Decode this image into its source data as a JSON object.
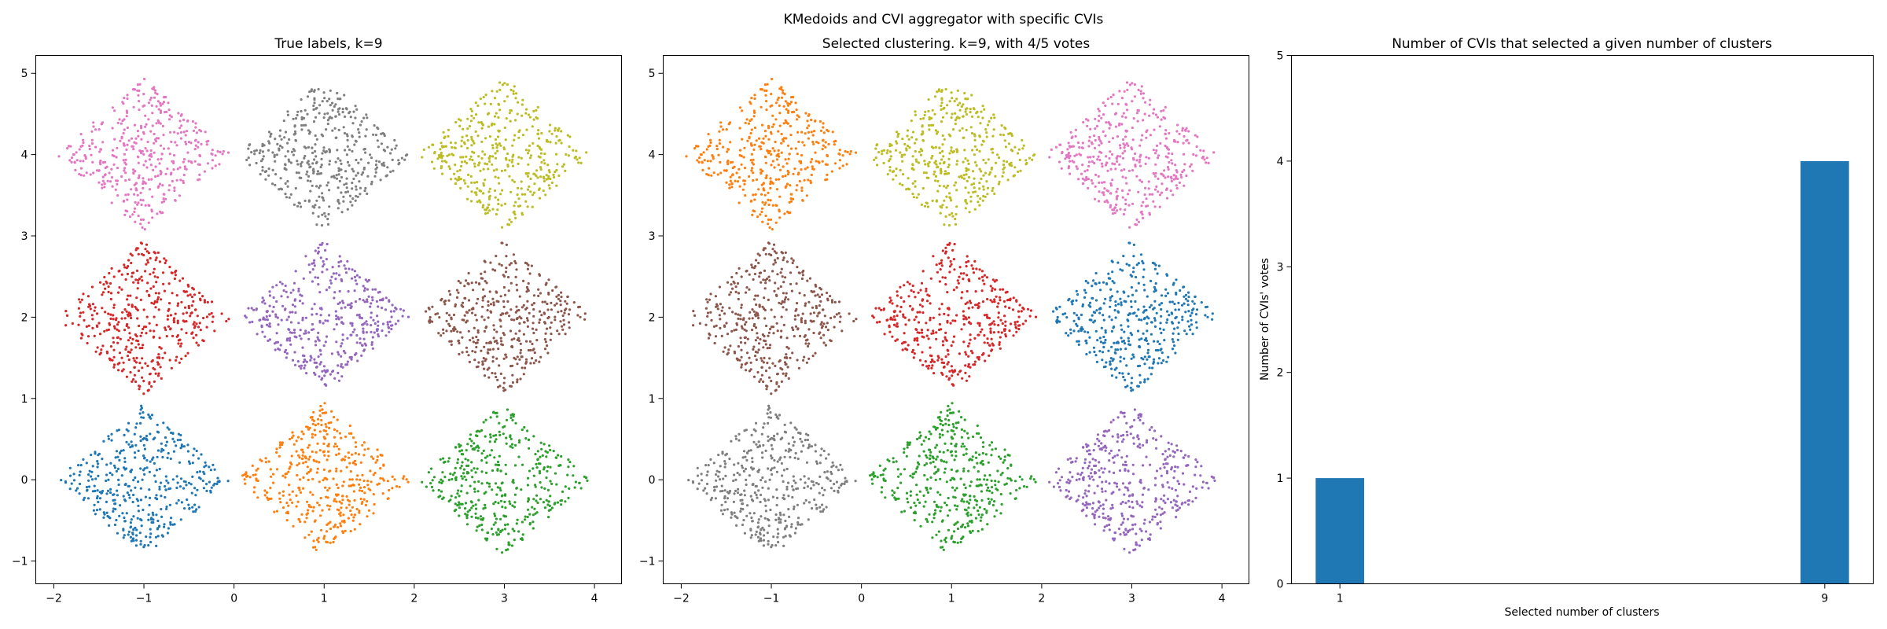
{
  "suptitle": "KMedoids and CVI aggregator with specific CVIs",
  "palette": [
    "#1f77b4",
    "#ff7f0e",
    "#2ca02c",
    "#d62728",
    "#9467bd",
    "#8c564b",
    "#e377c2",
    "#7f7f7f",
    "#bcbd22"
  ],
  "chart_data": [
    {
      "type": "scatter",
      "title": "True labels, k=9",
      "xlabel": "",
      "ylabel": "",
      "xlim": [
        -2.2,
        4.3
      ],
      "ylim": [
        -1.28,
        5.22
      ],
      "xticks": [
        -2,
        -1,
        0,
        1,
        2,
        3,
        4
      ],
      "yticks": [
        -1,
        0,
        1,
        2,
        3,
        4,
        5
      ],
      "grid": false,
      "points_per_cluster": 420,
      "cluster_half_width": 0.97,
      "cluster_half_height": 0.95,
      "clusters": [
        {
          "center": [
            -1,
            0
          ],
          "color": "#1f77b4"
        },
        {
          "center": [
            1,
            0
          ],
          "color": "#ff7f0e"
        },
        {
          "center": [
            3,
            0
          ],
          "color": "#2ca02c"
        },
        {
          "center": [
            -1,
            2
          ],
          "color": "#d62728"
        },
        {
          "center": [
            1,
            2
          ],
          "color": "#9467bd"
        },
        {
          "center": [
            3,
            2
          ],
          "color": "#8c564b"
        },
        {
          "center": [
            -1,
            4
          ],
          "color": "#e377c2"
        },
        {
          "center": [
            1,
            4
          ],
          "color": "#7f7f7f"
        },
        {
          "center": [
            3,
            4
          ],
          "color": "#bcbd22"
        }
      ]
    },
    {
      "type": "scatter",
      "title": "Selected clustering. k=9, with 4/5 votes",
      "xlabel": "",
      "ylabel": "",
      "xlim": [
        -2.2,
        4.3
      ],
      "ylim": [
        -1.28,
        5.22
      ],
      "xticks": [
        -2,
        -1,
        0,
        1,
        2,
        3,
        4
      ],
      "yticks": [
        -1,
        0,
        1,
        2,
        3,
        4,
        5
      ],
      "grid": false,
      "points_per_cluster": 420,
      "cluster_half_width": 0.97,
      "cluster_half_height": 0.95,
      "clusters": [
        {
          "center": [
            -1,
            0
          ],
          "color": "#7f7f7f"
        },
        {
          "center": [
            1,
            0
          ],
          "color": "#2ca02c"
        },
        {
          "center": [
            3,
            0
          ],
          "color": "#9467bd"
        },
        {
          "center": [
            -1,
            2
          ],
          "color": "#8c564b"
        },
        {
          "center": [
            1,
            2
          ],
          "color": "#d62728"
        },
        {
          "center": [
            3,
            2
          ],
          "color": "#1f77b4"
        },
        {
          "center": [
            -1,
            4
          ],
          "color": "#ff7f0e"
        },
        {
          "center": [
            1,
            4
          ],
          "color": "#bcbd22"
        },
        {
          "center": [
            3,
            4
          ],
          "color": "#e377c2"
        }
      ]
    },
    {
      "type": "bar",
      "title": "Number of CVIs that selected a given number of clusters",
      "xlabel": "Selected number of clusters",
      "ylabel": "Number of CVIs' votes",
      "categories": [
        1,
        9
      ],
      "values": [
        1,
        4
      ],
      "bar_width": 0.8,
      "xlim": [
        0.2,
        9.8
      ],
      "ylim": [
        0,
        5
      ],
      "yticks": [
        0,
        1,
        2,
        3,
        4,
        5
      ],
      "color": "#1f77b4",
      "grid": false
    }
  ]
}
